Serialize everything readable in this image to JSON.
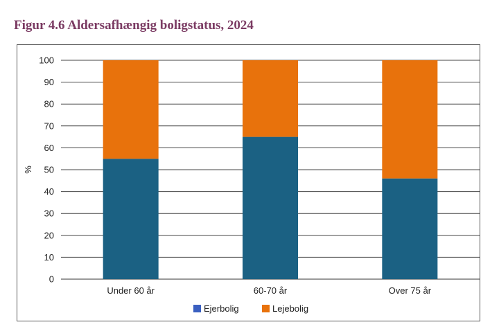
{
  "figure": {
    "title": "Figur 4.6  Aldersafhængig boligstatus, 2024"
  },
  "chart_data": {
    "type": "bar",
    "stacked": true,
    "categories": [
      "Under 60 år",
      "60-70 år",
      "Over 75 år"
    ],
    "series": [
      {
        "name": "Ejerbolig",
        "values": [
          55,
          65,
          46
        ],
        "color": "#1b6183"
      },
      {
        "name": "Lejebolig",
        "values": [
          45,
          35,
          54
        ],
        "color": "#e8720c"
      }
    ],
    "ylabel": "%",
    "xlabel": "",
    "ylim": [
      0,
      100
    ],
    "yticks": [
      0,
      10,
      20,
      30,
      40,
      50,
      60,
      70,
      80,
      90,
      100
    ],
    "grid": true,
    "legend_position": "bottom",
    "legend_swatch_colors": [
      "#3a5fc0",
      "#e8720c"
    ]
  }
}
